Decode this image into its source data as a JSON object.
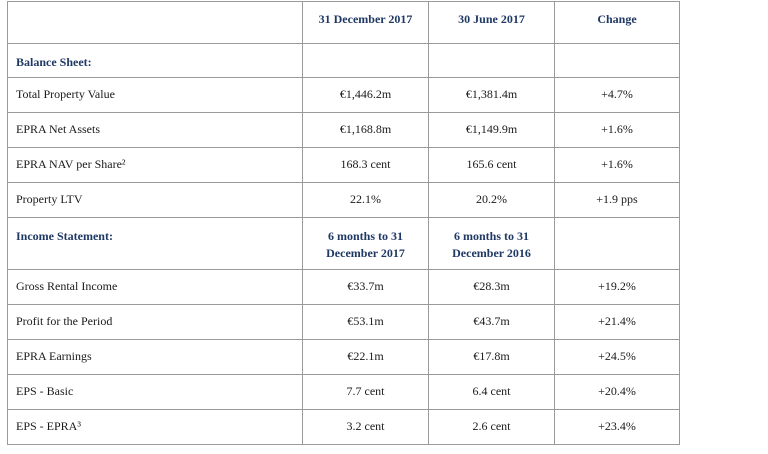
{
  "header": {
    "col1": "",
    "col2": "31 December 2017",
    "col3": "30 June 2017",
    "col4": "Change"
  },
  "balance_sheet": {
    "title": "Balance Sheet:",
    "rows": [
      {
        "label": "Total Property Value",
        "v1": "€1,446.2m",
        "v2": "€1,381.4m",
        "chg": "+4.7%"
      },
      {
        "label": "EPRA Net Assets",
        "v1": "€1,168.8m",
        "v2": "€1,149.9m",
        "chg": "+1.6%"
      },
      {
        "label": "EPRA NAV per Share²",
        "v1": "168.3 cent",
        "v2": "165.6 cent",
        "chg": "+1.6%"
      },
      {
        "label": "Property LTV",
        "v1": "22.1%",
        "v2": "20.2%",
        "chg": "+1.9 pps"
      }
    ]
  },
  "income_statement": {
    "title": "Income Statement:",
    "col2": "6 months to 31 December 2017",
    "col3": "6 months to 31 December 2016",
    "rows": [
      {
        "label": "Gross Rental Income",
        "v1": "€33.7m",
        "v2": "€28.3m",
        "chg": "+19.2%"
      },
      {
        "label": "Profit for the Period",
        "v1": "€53.1m",
        "v2": "€43.7m",
        "chg": "+21.4%"
      },
      {
        "label": "EPRA Earnings",
        "v1": "€22.1m",
        "v2": "€17.8m",
        "chg": "+24.5%"
      },
      {
        "label": "EPS - Basic",
        "v1": "7.7 cent",
        "v2": "6.4 cent",
        "chg": "+20.4%"
      },
      {
        "label": "EPS - EPRA³",
        "v1": "3.2 cent",
        "v2": "2.6 cent",
        "chg": "+23.4%"
      }
    ]
  }
}
